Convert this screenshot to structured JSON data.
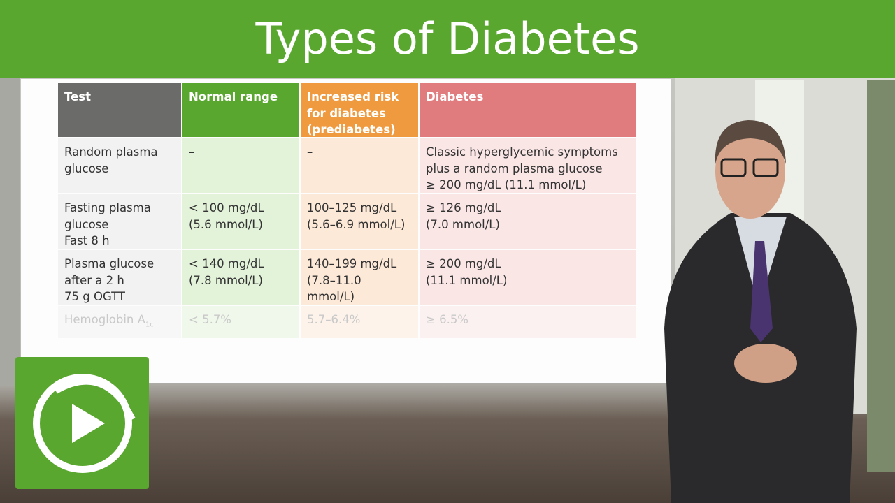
{
  "header": {
    "title": "Types of Diabetes"
  },
  "table": {
    "headers": [
      "Test",
      "Normal range",
      "Increased risk\nfor diabetes\n(prediabetes)",
      "Diabetes"
    ],
    "rows": [
      [
        "Random plasma\nglucose",
        "–",
        "–",
        "Classic hyperglycemic symptoms\nplus a random plasma glucose\n≥ 200 mg/dL (11.1 mmol/L)"
      ],
      [
        "Fasting plasma\nglucose\nFast 8 h",
        "< 100 mg/dL\n(5.6 mmol/L)",
        "100–125 mg/dL\n(5.6–6.9 mmol/L)",
        "≥ 126 mg/dL\n(7.0 mmol/L)"
      ],
      [
        "Plasma glucose\nafter a 2 h\n75 g OGTT",
        "< 140 mg/dL\n(7.8 mmol/L)",
        "140–199 mg/dL\n(7.8–11.0 mmol/L)",
        "≥ 200 mg/dL\n(11.1 mmol/L)"
      ]
    ],
    "faded_row": {
      "test": "Hemoglobin A",
      "test_sub": "1c",
      "normal": "< 5.7%",
      "prediabetes": "5.7–6.4%",
      "diabetes": "≥ 6.5%"
    }
  }
}
